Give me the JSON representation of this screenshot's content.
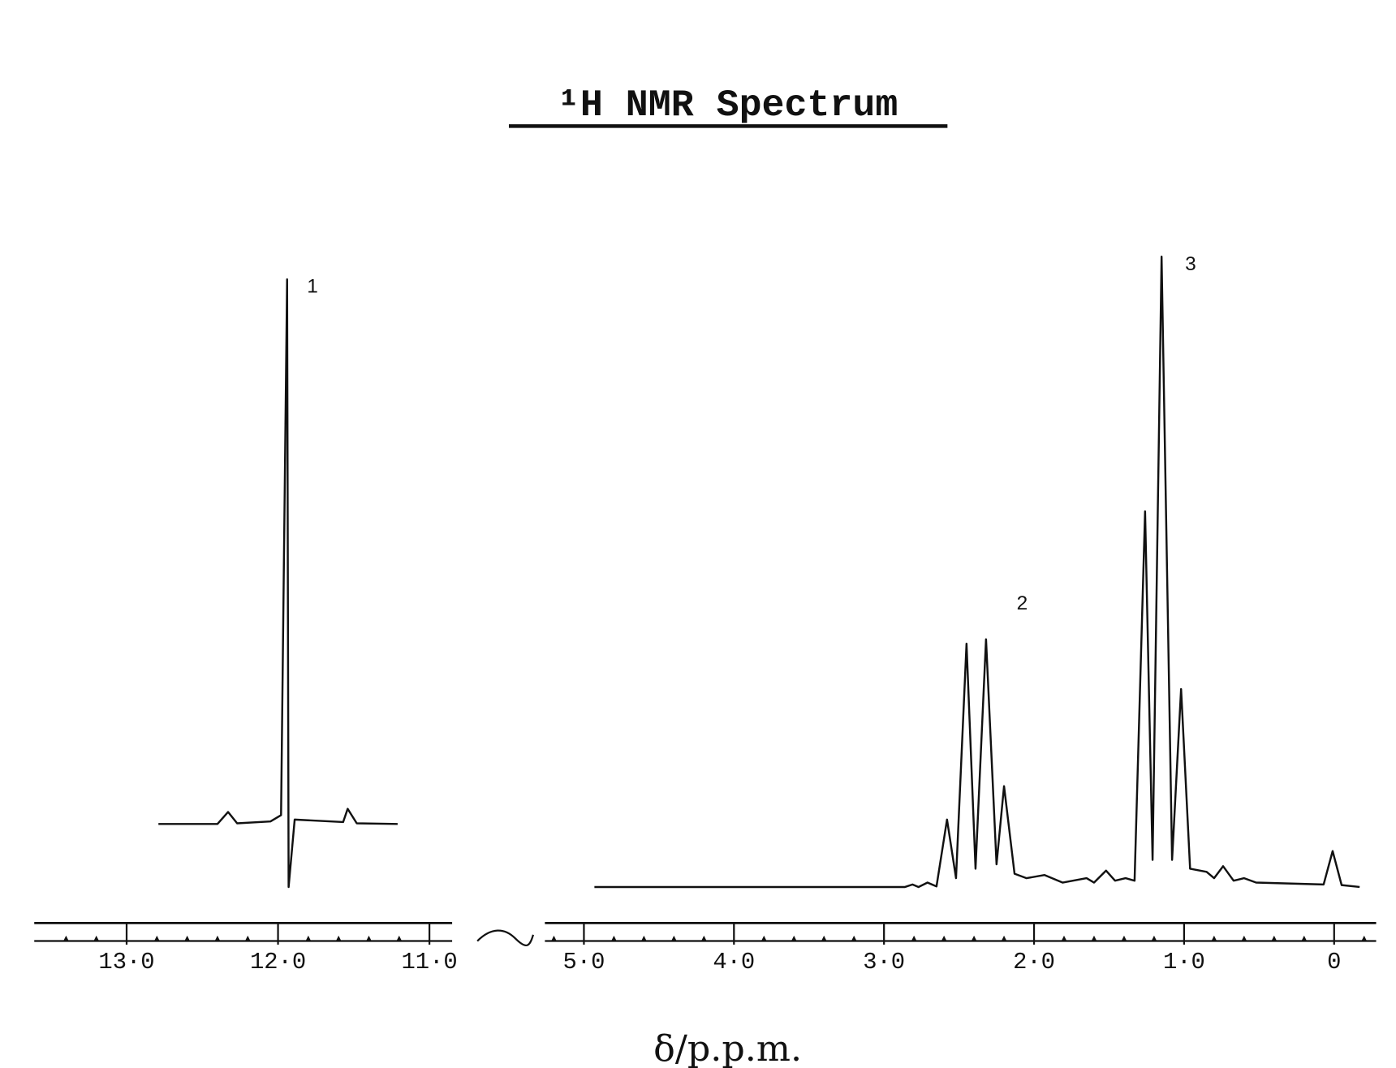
{
  "title": "¹H NMR Spectrum",
  "xlabel": "δ/p.p.m.",
  "chart_data": [
    {
      "type": "line",
      "color": "#111111",
      "xlim": [
        13.61,
        10.85
      ],
      "ylim": [
        0,
        100
      ],
      "xticks": [
        {
          "value": 13,
          "label": "13·0"
        },
        {
          "value": 12,
          "label": "12·0"
        },
        {
          "value": 11,
          "label": "11·0"
        }
      ],
      "xticks_minor": [
        13.4,
        13.2,
        12.8,
        12.6,
        12.4,
        12.2,
        11.8,
        11.6,
        11.4,
        11.2
      ],
      "annotations": [
        "1"
      ],
      "x": [
        12.79,
        12.4,
        12.33,
        12.27,
        12.05,
        11.98,
        11.94,
        11.93,
        11.89,
        11.57,
        11.54,
        11.48,
        11.21
      ],
      "values": [
        10,
        10,
        11.9,
        10.1,
        10.4,
        11.4,
        96.4,
        0,
        10.7,
        10.3,
        12.4,
        10.1,
        10
      ]
    },
    {
      "type": "line",
      "color": "#111111",
      "xlim": [
        5.26,
        -0.28
      ],
      "ylim": [
        0,
        100
      ],
      "xticks": [
        {
          "value": 5,
          "label": "5·0"
        },
        {
          "value": 4,
          "label": "4·0"
        },
        {
          "value": 3,
          "label": "3·0"
        },
        {
          "value": 2,
          "label": "2·0"
        },
        {
          "value": 1,
          "label": "1·0"
        },
        0
      ],
      "xticks_minor": [
        5.2,
        4.8,
        4.6,
        4.4,
        4.2,
        3.8,
        3.6,
        3.4,
        3.2,
        2.8,
        2.6,
        2.4,
        2.2,
        1.8,
        1.6,
        1.4,
        1.2,
        0.8,
        0.6,
        0.4,
        0.2,
        -0.2
      ],
      "annotations": [
        "2",
        "3"
      ],
      "x": [
        4.93,
        2.86,
        2.81,
        2.77,
        2.71,
        2.65,
        2.58,
        2.52,
        2.45,
        2.39,
        2.32,
        2.25,
        2.2,
        2.13,
        2.05,
        1.93,
        1.81,
        1.65,
        1.6,
        1.52,
        1.46,
        1.39,
        1.33,
        1.26,
        1.21,
        1.15,
        1.08,
        1.02,
        0.96,
        0.85,
        0.8,
        0.74,
        0.67,
        0.6,
        0.52,
        0.07,
        0.01,
        -0.05,
        -0.17
      ],
      "values": [
        0,
        0,
        0.4,
        0,
        0.7,
        0.1,
        10.7,
        1.4,
        38.6,
        2.9,
        39.3,
        3.6,
        16,
        2.1,
        1.4,
        1.9,
        0.7,
        1.4,
        0.7,
        2.6,
        1,
        1.4,
        1,
        59.6,
        4.3,
        100,
        4.3,
        31.4,
        2.9,
        2.4,
        1.4,
        3.3,
        1,
        1.4,
        0.7,
        0.4,
        5.7,
        0.3,
        0
      ]
    }
  ]
}
